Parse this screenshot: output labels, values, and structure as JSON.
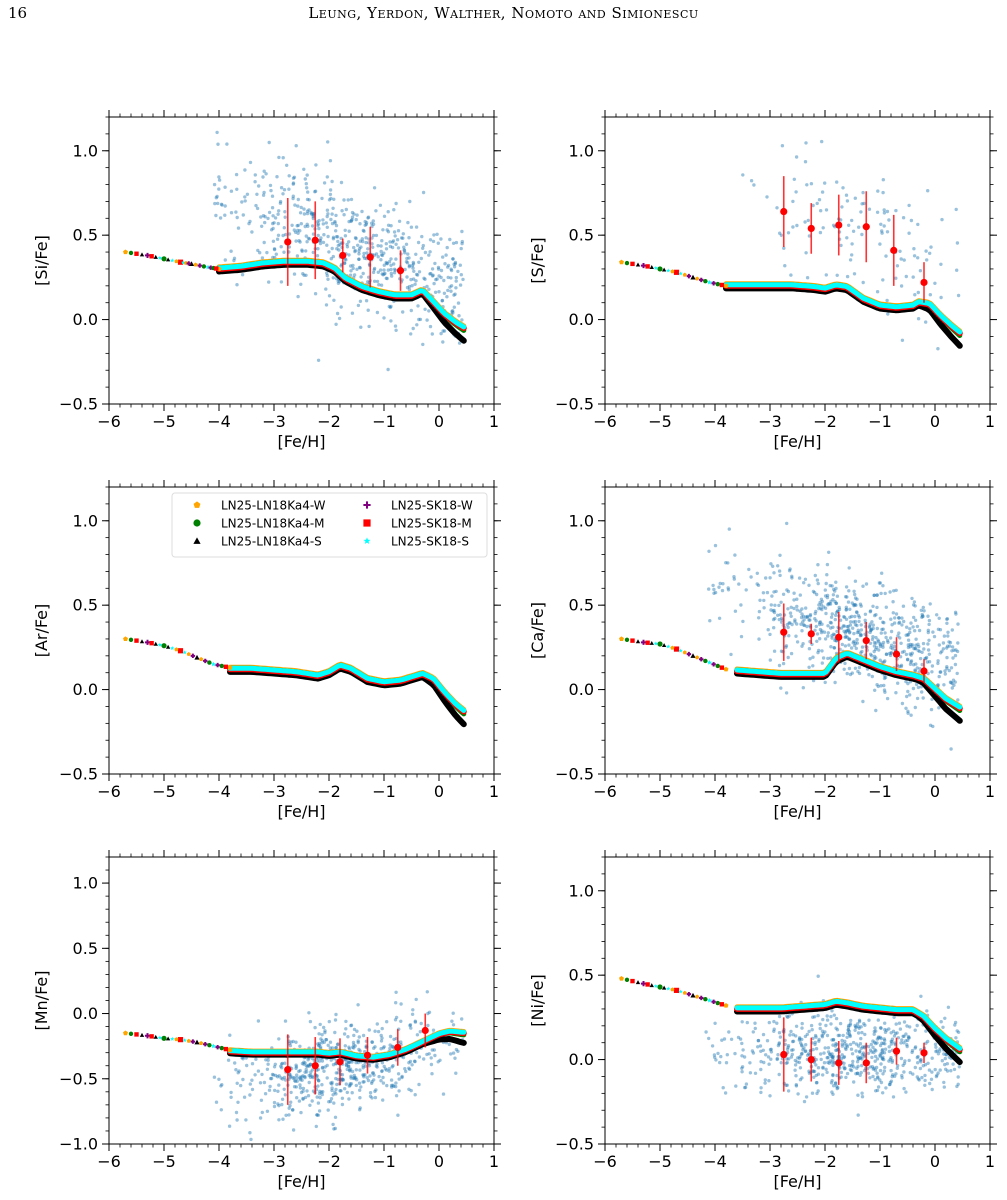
{
  "header": {
    "page_number": "16",
    "running_head": "Leung, Yerdon, Walther, Nomoto and Simionescu"
  },
  "colors": {
    "observations": "#1f77b4",
    "error_points": "#ff0000",
    "LN25-LN18Ka4-W": "#ffa500",
    "LN25-LN18Ka4-M": "#008000",
    "LN25-LN18Ka4-S": "#000000",
    "LN25-SK18-W": "#800080",
    "LN25-SK18-M": "#ff0000",
    "LN25-SK18-S": "#00ffff"
  },
  "legend": [
    {
      "label": "LN25-LN18Ka4-W",
      "marker": "pentagon",
      "color": "#ffa500"
    },
    {
      "label": "LN25-LN18Ka4-M",
      "marker": "circle",
      "color": "#008000"
    },
    {
      "label": "LN25-LN18Ka4-S",
      "marker": "triangle",
      "color": "#000000"
    },
    {
      "label": "LN25-SK18-W",
      "marker": "plus",
      "color": "#800080"
    },
    {
      "label": "LN25-SK18-M",
      "marker": "square",
      "color": "#ff0000"
    },
    {
      "label": "LN25-SK18-S",
      "marker": "star",
      "color": "#00ffff"
    }
  ],
  "chart_data": [
    {
      "id": "si",
      "type": "scatter",
      "xlabel": "[Fe/H]",
      "ylabel": "[Si/Fe]",
      "xlim": [
        -6,
        1
      ],
      "ylim": [
        -0.5,
        1.2
      ],
      "xticks": [
        "−6",
        "−5",
        "−4",
        "−3",
        "−2",
        "−1",
        "0",
        "1"
      ],
      "yticks": [
        "−0.5",
        "0.0",
        "0.5",
        "1.0"
      ],
      "obs_cloud": {
        "x_mean": -1.5,
        "x_sd": 1.2,
        "slope": -0.12,
        "intercept": 0.22,
        "scatter": 0.18,
        "count": 650
      },
      "error_points": [
        {
          "x": -2.75,
          "y": 0.46,
          "err": 0.26
        },
        {
          "x": -2.25,
          "y": 0.47,
          "err": 0.23
        },
        {
          "x": -1.75,
          "y": 0.38,
          "err": 0.1
        },
        {
          "x": -1.25,
          "y": 0.37,
          "err": 0.18
        },
        {
          "x": -0.7,
          "y": 0.29,
          "err": 0.12
        }
      ],
      "model_points": [
        {
          "x": -5.7,
          "y": 0.4
        },
        {
          "x": -5.3,
          "y": 0.38
        },
        {
          "x": -5.0,
          "y": 0.36
        },
        {
          "x": -4.7,
          "y": 0.34
        },
        {
          "x": -4.5,
          "y": 0.33
        },
        {
          "x": -4.2,
          "y": 0.31
        },
        {
          "x": -4.0,
          "y": 0.3
        }
      ],
      "model_curve": {
        "x": [
          -4.0,
          -3.6,
          -3.2,
          -2.8,
          -2.4,
          -2.1,
          -1.9,
          -1.7,
          -1.4,
          -1.1,
          -0.8,
          -0.5,
          -0.3,
          -0.1,
          0.1,
          0.3,
          0.45
        ],
        "y": [
          0.3,
          0.31,
          0.33,
          0.34,
          0.34,
          0.33,
          0.3,
          0.24,
          0.19,
          0.16,
          0.14,
          0.14,
          0.17,
          0.1,
          0.03,
          -0.02,
          -0.05
        ]
      }
    },
    {
      "id": "s",
      "type": "scatter",
      "xlabel": "[Fe/H]",
      "ylabel": "[S/Fe]",
      "xlim": [
        -6,
        1
      ],
      "ylim": [
        -0.5,
        1.2
      ],
      "xticks": [
        "−6",
        "−5",
        "−4",
        "−3",
        "−2",
        "−1",
        "0",
        "1"
      ],
      "yticks": [
        "−0.5",
        "0.0",
        "0.5",
        "1.0"
      ],
      "obs_cloud": {
        "x_mean": -1.4,
        "x_sd": 1.0,
        "slope": -0.12,
        "intercept": 0.33,
        "scatter": 0.2,
        "count": 130
      },
      "error_points": [
        {
          "x": -2.75,
          "y": 0.64,
          "err": 0.21
        },
        {
          "x": -2.25,
          "y": 0.54,
          "err": 0.15
        },
        {
          "x": -1.75,
          "y": 0.56,
          "err": 0.18
        },
        {
          "x": -1.25,
          "y": 0.55,
          "err": 0.21
        },
        {
          "x": -0.75,
          "y": 0.41,
          "err": 0.21
        },
        {
          "x": -0.2,
          "y": 0.22,
          "err": 0.12
        }
      ],
      "model_points": [
        {
          "x": -5.7,
          "y": 0.34
        },
        {
          "x": -5.3,
          "y": 0.32
        },
        {
          "x": -5.0,
          "y": 0.3
        },
        {
          "x": -4.7,
          "y": 0.28
        },
        {
          "x": -4.4,
          "y": 0.25
        },
        {
          "x": -4.1,
          "y": 0.22
        },
        {
          "x": -3.8,
          "y": 0.2
        }
      ],
      "model_curve": {
        "x": [
          -3.8,
          -3.4,
          -3.0,
          -2.6,
          -2.2,
          -2.0,
          -1.8,
          -1.6,
          -1.3,
          -1.0,
          -0.7,
          -0.4,
          -0.3,
          -0.1,
          0.1,
          0.3,
          0.45
        ],
        "y": [
          0.2,
          0.2,
          0.2,
          0.2,
          0.19,
          0.18,
          0.2,
          0.19,
          0.12,
          0.08,
          0.07,
          0.08,
          0.1,
          0.09,
          0.02,
          -0.04,
          -0.08
        ]
      }
    },
    {
      "id": "ar",
      "type": "scatter",
      "xlabel": "[Fe/H]",
      "ylabel": "[Ar/Fe]",
      "xlim": [
        -6,
        1
      ],
      "ylim": [
        -0.5,
        1.2
      ],
      "xticks": [
        "−6",
        "−5",
        "−4",
        "−3",
        "−2",
        "−1",
        "0",
        "1"
      ],
      "yticks": [
        "−0.5",
        "0.0",
        "0.5",
        "1.0"
      ],
      "obs_cloud": null,
      "error_points": [],
      "model_points": [
        {
          "x": -5.7,
          "y": 0.3
        },
        {
          "x": -5.3,
          "y": 0.28
        },
        {
          "x": -5.0,
          "y": 0.26
        },
        {
          "x": -4.7,
          "y": 0.23
        },
        {
          "x": -4.4,
          "y": 0.19
        },
        {
          "x": -4.1,
          "y": 0.15
        },
        {
          "x": -3.8,
          "y": 0.13
        }
      ],
      "model_curve": {
        "x": [
          -3.8,
          -3.4,
          -3.0,
          -2.6,
          -2.2,
          -2.0,
          -1.8,
          -1.6,
          -1.3,
          -1.0,
          -0.7,
          -0.4,
          -0.3,
          -0.1,
          0.1,
          0.3,
          0.45
        ],
        "y": [
          0.12,
          0.12,
          0.11,
          0.1,
          0.08,
          0.1,
          0.14,
          0.12,
          0.06,
          0.04,
          0.05,
          0.08,
          0.09,
          0.06,
          -0.02,
          -0.09,
          -0.13
        ]
      }
    },
    {
      "id": "ca",
      "type": "scatter",
      "xlabel": "[Fe/H]",
      "ylabel": "[Ca/Fe]",
      "xlim": [
        -6,
        1
      ],
      "ylim": [
        -0.5,
        1.2
      ],
      "xticks": [
        "−6",
        "−5",
        "−4",
        "−3",
        "−2",
        "−1",
        "0",
        "1"
      ],
      "yticks": [
        "−0.5",
        "0.0",
        "0.5",
        "1.0"
      ],
      "obs_cloud": {
        "x_mean": -1.3,
        "x_sd": 1.1,
        "slope": -0.1,
        "intercept": 0.18,
        "scatter": 0.16,
        "count": 700
      },
      "error_points": [
        {
          "x": -2.75,
          "y": 0.34,
          "err": 0.17
        },
        {
          "x": -2.25,
          "y": 0.33,
          "err": 0.06
        },
        {
          "x": -1.75,
          "y": 0.31,
          "err": 0.15
        },
        {
          "x": -1.25,
          "y": 0.29,
          "err": 0.11
        },
        {
          "x": -0.7,
          "y": 0.21,
          "err": 0.1
        },
        {
          "x": -0.2,
          "y": 0.11,
          "err": 0.07
        }
      ],
      "model_points": [
        {
          "x": -5.7,
          "y": 0.3
        },
        {
          "x": -5.3,
          "y": 0.28
        },
        {
          "x": -5.0,
          "y": 0.27
        },
        {
          "x": -4.7,
          "y": 0.24
        },
        {
          "x": -4.4,
          "y": 0.2
        },
        {
          "x": -4.1,
          "y": 0.16
        },
        {
          "x": -3.8,
          "y": 0.12
        }
      ],
      "model_curve": {
        "x": [
          -3.6,
          -3.2,
          -2.8,
          -2.4,
          -2.0,
          -1.8,
          -1.6,
          -1.3,
          -1.0,
          -0.7,
          -0.4,
          -0.2,
          0.0,
          0.2,
          0.45
        ],
        "y": [
          0.11,
          0.1,
          0.09,
          0.09,
          0.09,
          0.18,
          0.21,
          0.17,
          0.13,
          0.1,
          0.08,
          0.06,
          0.0,
          -0.06,
          -0.11
        ]
      }
    },
    {
      "id": "mn",
      "type": "scatter",
      "xlabel": "[Fe/H]",
      "ylabel": "[Mn/Fe]",
      "xlim": [
        -6,
        1
      ],
      "ylim": [
        -1.0,
        1.2
      ],
      "xticks": [
        "−6",
        "−5",
        "−4",
        "−3",
        "−2",
        "−1",
        "0",
        "1"
      ],
      "yticks": [
        "−1.0",
        "−0.5",
        "0.0",
        "0.5",
        "1.0"
      ],
      "obs_cloud": {
        "x_mean": -1.8,
        "x_sd": 1.0,
        "slope": 0.08,
        "intercept": -0.28,
        "scatter": 0.17,
        "count": 600
      },
      "error_points": [
        {
          "x": -2.75,
          "y": -0.43,
          "err": 0.27
        },
        {
          "x": -2.25,
          "y": -0.4,
          "err": 0.22
        },
        {
          "x": -1.8,
          "y": -0.37,
          "err": 0.18
        },
        {
          "x": -1.3,
          "y": -0.32,
          "err": 0.14
        },
        {
          "x": -0.75,
          "y": -0.26,
          "err": 0.14
        },
        {
          "x": -0.25,
          "y": -0.13,
          "err": 0.13
        }
      ],
      "model_points": [
        {
          "x": -5.7,
          "y": -0.15
        },
        {
          "x": -5.3,
          "y": -0.17
        },
        {
          "x": -5.0,
          "y": -0.19
        },
        {
          "x": -4.7,
          "y": -0.2
        },
        {
          "x": -4.4,
          "y": -0.22
        },
        {
          "x": -4.1,
          "y": -0.25
        },
        {
          "x": -3.8,
          "y": -0.28
        }
      ],
      "model_curve": {
        "x": [
          -3.8,
          -3.4,
          -3.0,
          -2.6,
          -2.2,
          -2.0,
          -1.8,
          -1.5,
          -1.2,
          -0.9,
          -0.6,
          -0.3,
          0.0,
          0.2,
          0.45
        ],
        "y": [
          -0.29,
          -0.3,
          -0.3,
          -0.3,
          -0.3,
          -0.31,
          -0.3,
          -0.33,
          -0.34,
          -0.32,
          -0.28,
          -0.22,
          -0.16,
          -0.14,
          -0.15
        ]
      }
    },
    {
      "id": "ni",
      "type": "scatter",
      "xlabel": "[Fe/H]",
      "ylabel": "[Ni/Fe]",
      "xlim": [
        -6,
        1
      ],
      "ylim": [
        -0.5,
        1.2
      ],
      "xticks": [
        "−6",
        "−5",
        "−4",
        "−3",
        "−2",
        "−1",
        "0",
        "1"
      ],
      "yticks": [
        "−0.5",
        "0.0",
        "0.5",
        "1.0"
      ],
      "obs_cloud": {
        "x_mean": -1.5,
        "x_sd": 1.1,
        "slope": 0.0,
        "intercept": 0.04,
        "scatter": 0.12,
        "count": 650
      },
      "error_points": [
        {
          "x": -2.75,
          "y": 0.03,
          "err": 0.22
        },
        {
          "x": -2.25,
          "y": 0.0,
          "err": 0.13
        },
        {
          "x": -1.75,
          "y": -0.02,
          "err": 0.13
        },
        {
          "x": -1.25,
          "y": -0.02,
          "err": 0.12
        },
        {
          "x": -0.7,
          "y": 0.05,
          "err": 0.08
        },
        {
          "x": -0.2,
          "y": 0.04,
          "err": 0.06
        }
      ],
      "model_points": [
        {
          "x": -5.7,
          "y": 0.48
        },
        {
          "x": -5.3,
          "y": 0.45
        },
        {
          "x": -5.0,
          "y": 0.43
        },
        {
          "x": -4.7,
          "y": 0.41
        },
        {
          "x": -4.4,
          "y": 0.38
        },
        {
          "x": -4.1,
          "y": 0.35
        },
        {
          "x": -3.8,
          "y": 0.32
        }
      ],
      "model_curve": {
        "x": [
          -3.6,
          -3.2,
          -2.8,
          -2.4,
          -2.0,
          -1.8,
          -1.6,
          -1.3,
          -1.0,
          -0.7,
          -0.4,
          -0.2,
          0.0,
          0.2,
          0.45
        ],
        "y": [
          0.3,
          0.3,
          0.3,
          0.31,
          0.32,
          0.34,
          0.33,
          0.31,
          0.3,
          0.29,
          0.29,
          0.25,
          0.18,
          0.12,
          0.06
        ]
      }
    }
  ]
}
